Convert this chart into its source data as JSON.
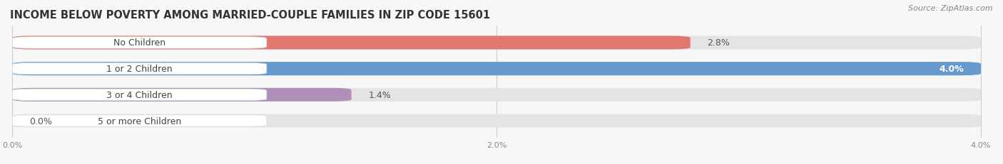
{
  "title": "INCOME BELOW POVERTY AMONG MARRIED-COUPLE FAMILIES IN ZIP CODE 15601",
  "source": "Source: ZipAtlas.com",
  "categories": [
    "No Children",
    "1 or 2 Children",
    "3 or 4 Children",
    "5 or more Children"
  ],
  "values": [
    2.8,
    4.0,
    1.4,
    0.0
  ],
  "bar_colors": [
    "#E07870",
    "#6699CC",
    "#B090B8",
    "#6EC8C0"
  ],
  "xlim_max": 4.0,
  "xticks": [
    0.0,
    2.0,
    4.0
  ],
  "xtick_labels": [
    "0.0%",
    "2.0%",
    "4.0%"
  ],
  "background_color": "#f7f7f7",
  "bar_bg_color": "#e4e4e4",
  "title_fontsize": 10.5,
  "source_fontsize": 8,
  "bar_height": 0.52,
  "bar_label_fontsize": 9,
  "category_fontsize": 9,
  "pill_color": "#ffffff",
  "pill_text_color": "#444444",
  "value_inside_color": "white",
  "value_outside_color": "#555555"
}
